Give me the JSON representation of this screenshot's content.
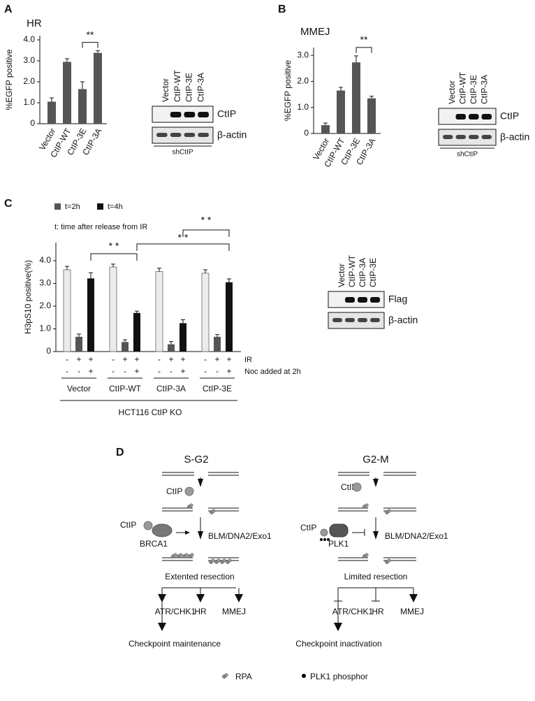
{
  "panels": [
    "A",
    "B",
    "C",
    "D"
  ],
  "chart_data": [
    {
      "type": "bar",
      "title": "HR",
      "y_label": "%EGFP positive",
      "categories": [
        "Vector",
        "CtIP-WT",
        "CtIP-3E",
        "CtIP-3A"
      ],
      "values": [
        1.05,
        2.95,
        1.65,
        3.38
      ],
      "errors": [
        0.18,
        0.15,
        0.35,
        0.1
      ],
      "color": "#555555",
      "ylim": [
        0,
        4.2
      ],
      "yticks": [
        0,
        {
          "value": 1,
          "label": "1.0"
        },
        {
          "value": 2,
          "label": "2.0"
        },
        {
          "value": 3,
          "label": "3.0"
        },
        {
          "value": 4,
          "label": "4.0"
        }
      ],
      "significance": "**"
    },
    {
      "type": "bar",
      "title": "MMEJ",
      "y_label": "%EGFP positive",
      "categories": [
        "Vector",
        "CtIP-WT",
        "CtIP-3E",
        "CtIP-3A"
      ],
      "values": [
        0.32,
        1.65,
        2.73,
        1.35
      ],
      "errors": [
        0.08,
        0.12,
        0.25,
        0.08
      ],
      "color": "#555555",
      "ylim": [
        0,
        3.3
      ],
      "yticks": [
        0,
        {
          "value": 1,
          "label": "1.0"
        },
        {
          "value": 2,
          "label": "2.0"
        },
        {
          "value": 3,
          "label": "3.0"
        }
      ],
      "significance": "**"
    },
    {
      "type": "grouped-bar",
      "y_label": "H3pS10 positive(%)",
      "note": "t: time after release from IR",
      "categories": [
        "Vector",
        "CtIP-WT",
        "CtIP-3A",
        "CtIP-3E"
      ],
      "series": [
        {
          "color": "#ececec",
          "values": [
            3.6,
            3.72,
            3.52,
            3.45
          ],
          "errors": [
            0.15,
            0.13,
            0.15,
            0.15
          ]
        },
        {
          "name": "t=2h",
          "color": "#555555",
          "values": [
            0.65,
            0.42,
            0.32,
            0.65
          ],
          "errors": [
            0.12,
            0.1,
            0.12,
            0.1
          ]
        },
        {
          "name": "t=4h",
          "color": "#111111",
          "values": [
            3.22,
            1.7,
            1.25,
            3.05
          ],
          "errors": [
            0.25,
            0.08,
            0.15,
            0.15
          ]
        }
      ],
      "ylim": [
        0,
        4.8
      ],
      "yticks": [
        0,
        {
          "value": 1,
          "label": "1.0"
        },
        {
          "value": 2,
          "label": "2.0"
        },
        {
          "value": 3,
          "label": "3.0"
        },
        {
          "value": 4,
          "label": "4.0"
        }
      ],
      "treatments": [
        {
          "label": "IR",
          "signs": [
            "-",
            "+",
            "+"
          ]
        },
        {
          "label": "Noc added at 2h",
          "signs": [
            "-",
            "-",
            "+"
          ]
        }
      ],
      "group_label": "HCT116 CtIP KO",
      "significance": [
        "* *",
        "* *",
        "* *"
      ]
    }
  ],
  "blots": [
    {
      "lanes": [
        "Vector",
        "CtIP-WT",
        "CtIP-3E",
        "CtIP-3A"
      ],
      "bands": [
        "CtIP",
        "β-actin"
      ],
      "group": "shCtIP"
    },
    {
      "lanes": [
        "Vector",
        "CtIP-WT",
        "CtIP-3E",
        "CtIP-3A"
      ],
      "bands": [
        "CtIP",
        "β-actin"
      ],
      "group": "shCtIP"
    },
    {
      "lanes": [
        "Vector",
        "CtIP-WT",
        "CtIP-3A",
        "CtIP-3E"
      ],
      "bands": [
        "Flag",
        "β-actin"
      ]
    }
  ],
  "diagram": {
    "left": {
      "title": "S-G2",
      "ctip_1": "CtIP",
      "ctip_2": "CtIP",
      "partner": "BRCA1",
      "nucleases": "BLM/DNA2/Exo1",
      "resection": "Extented resection",
      "outcomes": [
        "ATR/CHK1",
        "HR",
        "MMEJ"
      ],
      "result": "Checkpoint maintenance"
    },
    "right": {
      "title": "G2-M",
      "ctip_1": "CtIP",
      "ctip_2": "CtIP",
      "partner": "PLK1",
      "nucleases": "BLM/DNA2/Exo1",
      "resection": "Limited resection",
      "outcomes": [
        "ATR/CHK1",
        "HR",
        "MMEJ"
      ],
      "result": "Checkpoint inactivation"
    },
    "legend": {
      "rpa": "RPA",
      "phospho": "PLK1 phosphor"
    }
  }
}
